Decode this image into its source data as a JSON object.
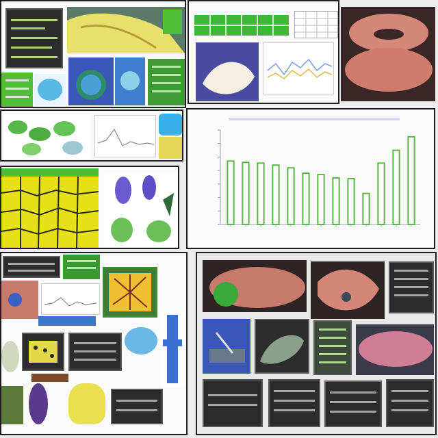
{
  "chart_data": {
    "type": "bar",
    "categories": [
      "",
      "",
      "",
      "",
      "",
      "",
      "",
      "",
      "",
      "",
      "",
      "",
      ""
    ],
    "values": [
      94,
      92,
      91,
      88,
      84,
      76,
      74,
      69,
      68,
      46,
      91,
      110,
      130
    ],
    "ylim": [
      0,
      140
    ],
    "grid": false,
    "title": "",
    "xlabel": "",
    "ylabel": "",
    "bar_color": "#5cb548"
  },
  "colors": {
    "panel_border": "#1e1e1e",
    "accent_green": "#3fa832",
    "accent_blue": "#3a56b8",
    "flesh": "#c77466",
    "yellow": "#e6e019"
  },
  "icons": [
    "chart-icon",
    "image-thumbnail-icon",
    "document-icon"
  ]
}
